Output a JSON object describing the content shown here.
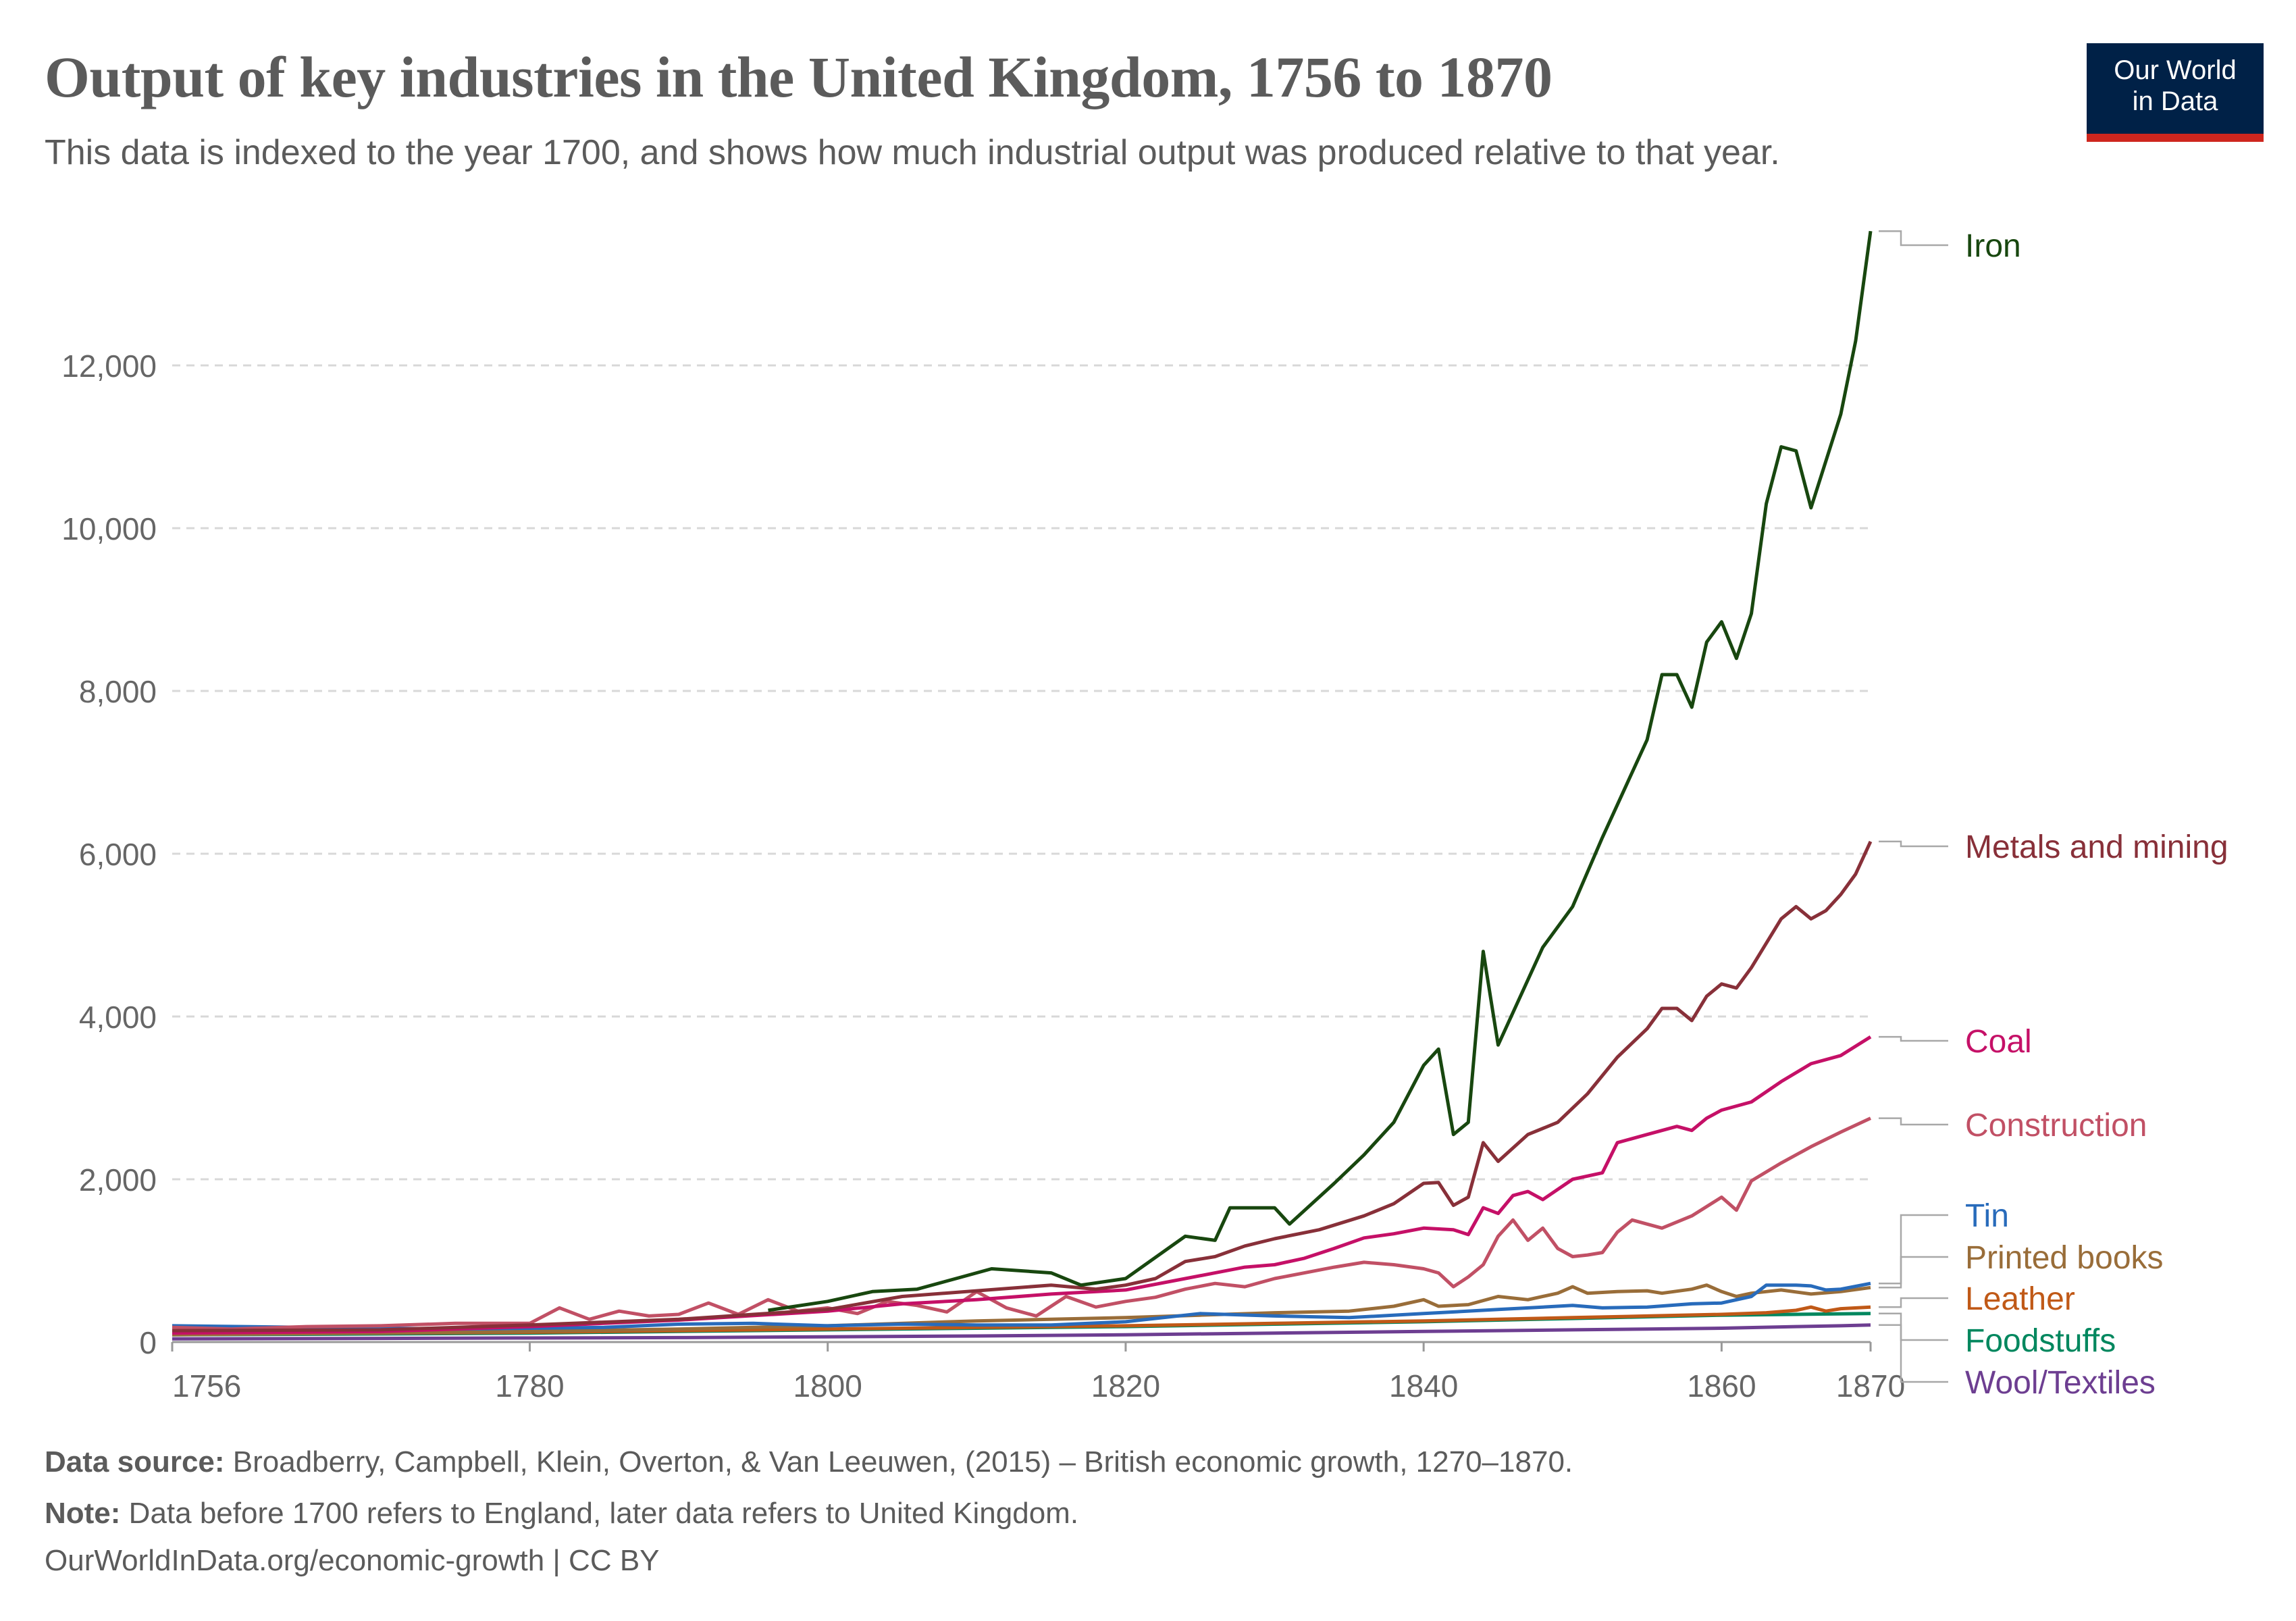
{
  "header": {
    "title": "Output of key industries in the United Kingdom, 1756 to 1870",
    "subtitle": "This data is indexed to the year 1700, and shows how much industrial output was produced relative to that year."
  },
  "logo": {
    "line1": "Our World",
    "line2": "in Data",
    "bg_color": "#002147",
    "accent_color": "#ce261e"
  },
  "footer": {
    "source_label": "Data source:",
    "source_text": " Broadberry, Campbell, Klein, Overton, & Van Leeuwen, (2015) – British economic growth, 1270–1870.",
    "note_label": "Note:",
    "note_text": " Data before 1700 refers to England, later data refers to United Kingdom.",
    "url": "OurWorldInData.org/economic-growth | CC BY"
  },
  "chart_data": {
    "type": "line",
    "title": "Output of key industries in the United Kingdom, 1756 to 1870",
    "xlabel": "",
    "ylabel": "",
    "xlim": [
      1756,
      1870
    ],
    "ylim": [
      0,
      14000
    ],
    "x_ticks": [
      1756,
      1780,
      1800,
      1820,
      1840,
      1860,
      1870
    ],
    "y_ticks": [
      0,
      2000,
      4000,
      6000,
      8000,
      10000,
      12000
    ],
    "y_tick_labels": [
      "0",
      "2,000",
      "4,000",
      "6,000",
      "8,000",
      "10,000",
      "12,000"
    ],
    "grid": "horizontal dashed",
    "legend": "right end labels",
    "series": [
      {
        "name": "Iron",
        "color": "#18470f",
        "points": [
          [
            1796,
            390
          ],
          [
            1800,
            500
          ],
          [
            1803,
            620
          ],
          [
            1806,
            650
          ],
          [
            1809,
            800
          ],
          [
            1811,
            900
          ],
          [
            1815,
            850
          ],
          [
            1817,
            700
          ],
          [
            1820,
            780
          ],
          [
            1824,
            1300
          ],
          [
            1826,
            1250
          ],
          [
            1827,
            1650
          ],
          [
            1830,
            1650
          ],
          [
            1831,
            1450
          ],
          [
            1834,
            1950
          ],
          [
            1836,
            2300
          ],
          [
            1838,
            2700
          ],
          [
            1840,
            3400
          ],
          [
            1841,
            3600
          ],
          [
            1842,
            2550
          ],
          [
            1843,
            2700
          ],
          [
            1844,
            4800
          ],
          [
            1845,
            3650
          ],
          [
            1848,
            4850
          ],
          [
            1850,
            5350
          ],
          [
            1852,
            6200
          ],
          [
            1854,
            7000
          ],
          [
            1855,
            7400
          ],
          [
            1856,
            8200
          ],
          [
            1857,
            8200
          ],
          [
            1858,
            7800
          ],
          [
            1859,
            8600
          ],
          [
            1860,
            8850
          ],
          [
            1861,
            8400
          ],
          [
            1862,
            8950
          ],
          [
            1863,
            10300
          ],
          [
            1864,
            11000
          ],
          [
            1865,
            10950
          ],
          [
            1866,
            10250
          ],
          [
            1868,
            11400
          ],
          [
            1869,
            12300
          ],
          [
            1870,
            13650
          ]
        ]
      },
      {
        "name": "Metals and mining",
        "color": "#883039",
        "points": [
          [
            1756,
            140
          ],
          [
            1770,
            150
          ],
          [
            1780,
            210
          ],
          [
            1790,
            280
          ],
          [
            1800,
            400
          ],
          [
            1805,
            560
          ],
          [
            1810,
            630
          ],
          [
            1815,
            700
          ],
          [
            1818,
            650
          ],
          [
            1820,
            700
          ],
          [
            1822,
            780
          ],
          [
            1824,
            990
          ],
          [
            1826,
            1050
          ],
          [
            1828,
            1180
          ],
          [
            1830,
            1270
          ],
          [
            1833,
            1380
          ],
          [
            1836,
            1550
          ],
          [
            1838,
            1700
          ],
          [
            1840,
            1950
          ],
          [
            1841,
            1960
          ],
          [
            1842,
            1680
          ],
          [
            1843,
            1780
          ],
          [
            1844,
            2450
          ],
          [
            1845,
            2220
          ],
          [
            1847,
            2550
          ],
          [
            1849,
            2700
          ],
          [
            1851,
            3050
          ],
          [
            1853,
            3500
          ],
          [
            1855,
            3850
          ],
          [
            1856,
            4100
          ],
          [
            1857,
            4100
          ],
          [
            1858,
            3950
          ],
          [
            1859,
            4250
          ],
          [
            1860,
            4400
          ],
          [
            1861,
            4350
          ],
          [
            1862,
            4600
          ],
          [
            1864,
            5200
          ],
          [
            1865,
            5350
          ],
          [
            1866,
            5200
          ],
          [
            1867,
            5300
          ],
          [
            1868,
            5500
          ],
          [
            1869,
            5750
          ],
          [
            1870,
            6150
          ]
        ]
      },
      {
        "name": "Coal",
        "color": "#c51067",
        "points": [
          [
            1756,
            110
          ],
          [
            1770,
            130
          ],
          [
            1780,
            190
          ],
          [
            1790,
            270
          ],
          [
            1800,
            380
          ],
          [
            1805,
            470
          ],
          [
            1810,
            520
          ],
          [
            1815,
            590
          ],
          [
            1820,
            640
          ],
          [
            1824,
            780
          ],
          [
            1826,
            850
          ],
          [
            1828,
            920
          ],
          [
            1830,
            950
          ],
          [
            1832,
            1030
          ],
          [
            1834,
            1150
          ],
          [
            1836,
            1280
          ],
          [
            1838,
            1330
          ],
          [
            1840,
            1400
          ],
          [
            1842,
            1380
          ],
          [
            1843,
            1320
          ],
          [
            1844,
            1650
          ],
          [
            1845,
            1580
          ],
          [
            1846,
            1800
          ],
          [
            1847,
            1850
          ],
          [
            1848,
            1750
          ],
          [
            1850,
            2000
          ],
          [
            1852,
            2080
          ],
          [
            1853,
            2450
          ],
          [
            1855,
            2550
          ],
          [
            1857,
            2650
          ],
          [
            1858,
            2600
          ],
          [
            1859,
            2750
          ],
          [
            1860,
            2850
          ],
          [
            1862,
            2950
          ],
          [
            1864,
            3200
          ],
          [
            1866,
            3420
          ],
          [
            1868,
            3520
          ],
          [
            1870,
            3750
          ]
        ]
      },
      {
        "name": "Construction",
        "color": "#c15065",
        "points": [
          [
            1756,
            180
          ],
          [
            1760,
            160
          ],
          [
            1765,
            190
          ],
          [
            1770,
            200
          ],
          [
            1775,
            230
          ],
          [
            1780,
            230
          ],
          [
            1782,
            420
          ],
          [
            1784,
            280
          ],
          [
            1786,
            380
          ],
          [
            1788,
            320
          ],
          [
            1790,
            340
          ],
          [
            1792,
            480
          ],
          [
            1794,
            340
          ],
          [
            1796,
            520
          ],
          [
            1798,
            380
          ],
          [
            1800,
            420
          ],
          [
            1802,
            350
          ],
          [
            1804,
            500
          ],
          [
            1806,
            450
          ],
          [
            1808,
            370
          ],
          [
            1810,
            620
          ],
          [
            1812,
            420
          ],
          [
            1814,
            320
          ],
          [
            1816,
            560
          ],
          [
            1818,
            430
          ],
          [
            1820,
            500
          ],
          [
            1822,
            550
          ],
          [
            1824,
            650
          ],
          [
            1826,
            720
          ],
          [
            1828,
            680
          ],
          [
            1830,
            780
          ],
          [
            1832,
            850
          ],
          [
            1834,
            920
          ],
          [
            1836,
            980
          ],
          [
            1838,
            950
          ],
          [
            1840,
            900
          ],
          [
            1841,
            850
          ],
          [
            1842,
            680
          ],
          [
            1843,
            800
          ],
          [
            1844,
            950
          ],
          [
            1845,
            1300
          ],
          [
            1846,
            1500
          ],
          [
            1847,
            1250
          ],
          [
            1848,
            1400
          ],
          [
            1849,
            1150
          ],
          [
            1850,
            1050
          ],
          [
            1851,
            1070
          ],
          [
            1852,
            1100
          ],
          [
            1853,
            1350
          ],
          [
            1854,
            1500
          ],
          [
            1856,
            1400
          ],
          [
            1858,
            1550
          ],
          [
            1860,
            1780
          ],
          [
            1861,
            1620
          ],
          [
            1862,
            1980
          ],
          [
            1864,
            2200
          ],
          [
            1866,
            2400
          ],
          [
            1868,
            2580
          ],
          [
            1870,
            2750
          ]
        ]
      },
      {
        "name": "Tin",
        "color": "#286bbb",
        "points": [
          [
            1756,
            200
          ],
          [
            1765,
            180
          ],
          [
            1775,
            160
          ],
          [
            1785,
            180
          ],
          [
            1790,
            220
          ],
          [
            1795,
            230
          ],
          [
            1800,
            200
          ],
          [
            1805,
            220
          ],
          [
            1810,
            210
          ],
          [
            1815,
            210
          ],
          [
            1820,
            250
          ],
          [
            1825,
            350
          ],
          [
            1830,
            320
          ],
          [
            1835,
            300
          ],
          [
            1840,
            350
          ],
          [
            1845,
            400
          ],
          [
            1850,
            450
          ],
          [
            1852,
            420
          ],
          [
            1855,
            430
          ],
          [
            1858,
            470
          ],
          [
            1860,
            480
          ],
          [
            1862,
            560
          ],
          [
            1863,
            700
          ],
          [
            1865,
            700
          ],
          [
            1866,
            690
          ],
          [
            1867,
            640
          ],
          [
            1868,
            650
          ],
          [
            1870,
            720
          ]
        ]
      },
      {
        "name": "Printed books",
        "color": "#996d39",
        "points": [
          [
            1756,
            90
          ],
          [
            1770,
            110
          ],
          [
            1780,
            130
          ],
          [
            1790,
            160
          ],
          [
            1800,
            200
          ],
          [
            1810,
            260
          ],
          [
            1815,
            280
          ],
          [
            1820,
            300
          ],
          [
            1825,
            330
          ],
          [
            1830,
            360
          ],
          [
            1835,
            380
          ],
          [
            1838,
            440
          ],
          [
            1840,
            520
          ],
          [
            1841,
            440
          ],
          [
            1843,
            460
          ],
          [
            1845,
            560
          ],
          [
            1847,
            520
          ],
          [
            1849,
            600
          ],
          [
            1850,
            680
          ],
          [
            1851,
            600
          ],
          [
            1853,
            620
          ],
          [
            1855,
            630
          ],
          [
            1856,
            600
          ],
          [
            1858,
            650
          ],
          [
            1859,
            700
          ],
          [
            1860,
            620
          ],
          [
            1861,
            560
          ],
          [
            1862,
            600
          ],
          [
            1863,
            620
          ],
          [
            1864,
            640
          ],
          [
            1866,
            590
          ],
          [
            1868,
            620
          ],
          [
            1870,
            670
          ]
        ]
      },
      {
        "name": "Leather",
        "color": "#c05917",
        "points": [
          [
            1756,
            100
          ],
          [
            1770,
            110
          ],
          [
            1780,
            120
          ],
          [
            1790,
            140
          ],
          [
            1800,
            160
          ],
          [
            1810,
            180
          ],
          [
            1820,
            200
          ],
          [
            1830,
            230
          ],
          [
            1840,
            260
          ],
          [
            1845,
            280
          ],
          [
            1850,
            300
          ],
          [
            1855,
            320
          ],
          [
            1860,
            340
          ],
          [
            1863,
            360
          ],
          [
            1865,
            390
          ],
          [
            1866,
            430
          ],
          [
            1867,
            380
          ],
          [
            1868,
            410
          ],
          [
            1870,
            430
          ]
        ]
      },
      {
        "name": "Foodstuffs",
        "color": "#00875e",
        "points": [
          [
            1756,
            90
          ],
          [
            1770,
            100
          ],
          [
            1780,
            110
          ],
          [
            1790,
            130
          ],
          [
            1800,
            150
          ],
          [
            1810,
            170
          ],
          [
            1820,
            190
          ],
          [
            1830,
            220
          ],
          [
            1840,
            250
          ],
          [
            1845,
            270
          ],
          [
            1850,
            290
          ],
          [
            1855,
            310
          ],
          [
            1860,
            330
          ],
          [
            1865,
            340
          ],
          [
            1870,
            350
          ]
        ]
      },
      {
        "name": "Wool/Textiles",
        "color": "#6d3e91",
        "points": [
          [
            1756,
            40
          ],
          [
            1770,
            45
          ],
          [
            1780,
            50
          ],
          [
            1790,
            55
          ],
          [
            1800,
            65
          ],
          [
            1810,
            75
          ],
          [
            1820,
            90
          ],
          [
            1830,
            110
          ],
          [
            1840,
            130
          ],
          [
            1845,
            140
          ],
          [
            1850,
            150
          ],
          [
            1855,
            160
          ],
          [
            1860,
            170
          ],
          [
            1865,
            190
          ],
          [
            1868,
            200
          ],
          [
            1870,
            210
          ]
        ]
      }
    ]
  }
}
